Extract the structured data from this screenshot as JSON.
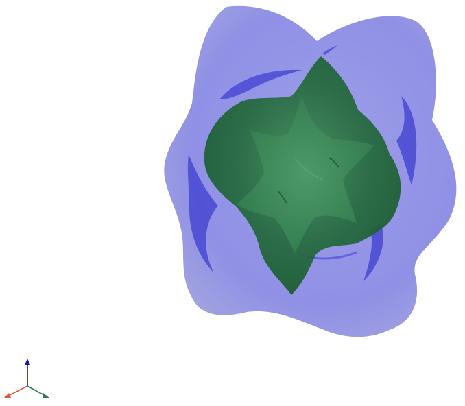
{
  "viewer": {
    "background": "#ffffff"
  },
  "isosurfaces": [
    {
      "name": "outer",
      "color": "#7f7fe6",
      "opacity": 0.6
    },
    {
      "name": "inner",
      "color": "#1f6b2f",
      "opacity": 0.7
    }
  ],
  "orientation_axes": {
    "x_color": "#d9583b",
    "y_color": "#2e7d4f",
    "z_color": "#1a1aa6"
  }
}
